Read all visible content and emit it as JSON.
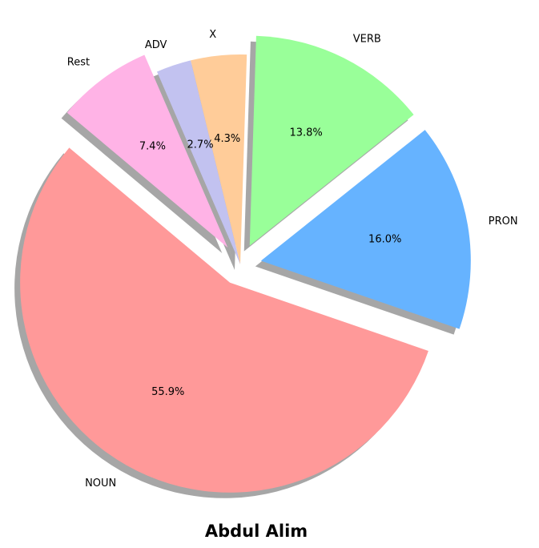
{
  "chart_data": {
    "type": "pie",
    "title": "Abdul Alim",
    "slices": [
      {
        "label": "NOUN",
        "value": 55.9,
        "pct_label": "55.9%",
        "color": "#ff9999",
        "exploded": true
      },
      {
        "label": "PRON",
        "value": 16.0,
        "pct_label": "16.0%",
        "color": "#66b3ff",
        "exploded": true
      },
      {
        "label": "VERB",
        "value": 13.8,
        "pct_label": "13.8%",
        "color": "#99ff99",
        "exploded": true
      },
      {
        "label": "X",
        "value": 4.3,
        "pct_label": "4.3%",
        "color": "#ffcc99",
        "exploded": false
      },
      {
        "label": "ADV",
        "value": 2.7,
        "pct_label": "2.7%",
        "color": "#c2c2f0",
        "exploded": false
      },
      {
        "label": "Rest",
        "value": 7.4,
        "pct_label": "7.4%",
        "color": "#ffb3e6",
        "exploded": true
      }
    ],
    "start_angle_deg": 140,
    "direction": "counterclockwise",
    "shadow": true,
    "legend": false
  }
}
